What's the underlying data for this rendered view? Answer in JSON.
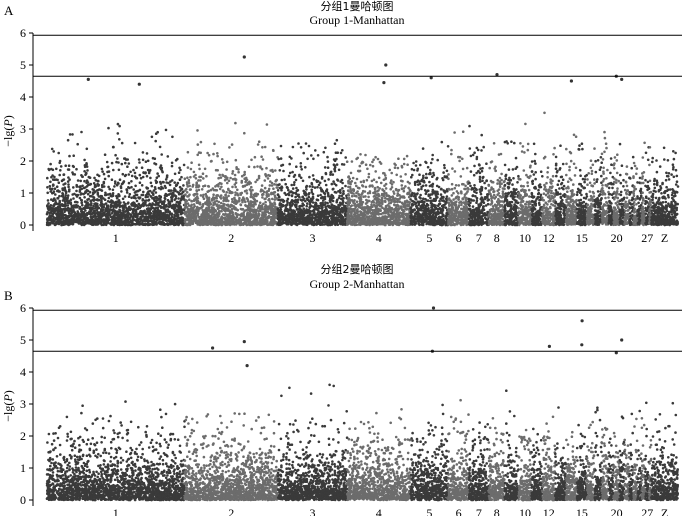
{
  "chart_data": [
    {
      "panel_label": "A",
      "type": "scatter",
      "subtype": "manhattan",
      "title": "分组1曼哈顿图",
      "subtitle": "Group 1-Manhattan",
      "ylabel_prefix": "−lg(",
      "ylabel_italic": "P",
      "ylabel_suffix": ")",
      "ylim": [
        0,
        6
      ],
      "yticks": [
        "0",
        "1",
        "2",
        "3",
        "4",
        "5",
        "6"
      ],
      "threshold_lines": [
        4.65,
        5.93
      ],
      "chromosome_labels": [
        "1",
        "2",
        "3",
        "4",
        "5",
        "6",
        "7",
        "8",
        "10",
        "12",
        "15",
        "20",
        "27",
        "Z"
      ],
      "chromosome_order": [
        "1",
        "2",
        "3",
        "4",
        "5",
        "6",
        "7",
        "8",
        "9",
        "10",
        "11",
        "12",
        "13",
        "14",
        "15",
        "16",
        "17",
        "18",
        "19",
        "20",
        "21",
        "22",
        "23",
        "24",
        "25",
        "26",
        "27",
        "28",
        "Z"
      ],
      "chromosome_colors": [
        "#3a3a3a",
        "#6c6c6c"
      ],
      "top_hits": [
        {
          "chr": "1",
          "value": 4.55
        },
        {
          "chr": "1",
          "value": 4.4
        },
        {
          "chr": "2",
          "value": 5.25
        },
        {
          "chr": "4",
          "value": 5.0
        },
        {
          "chr": "4",
          "value": 4.45
        },
        {
          "chr": "5",
          "value": 4.6
        },
        {
          "chr": "8",
          "value": 4.7
        },
        {
          "chr": "14",
          "value": 4.5
        },
        {
          "chr": "20",
          "value": 4.65
        },
        {
          "chr": "21",
          "value": 4.55
        }
      ]
    },
    {
      "panel_label": "B",
      "type": "scatter",
      "subtype": "manhattan",
      "title": "分组2曼哈顿图",
      "subtitle": "Group 2-Manhattan",
      "ylabel_prefix": "−lg(",
      "ylabel_italic": "P",
      "ylabel_suffix": ")",
      "ylim": [
        0,
        6
      ],
      "yticks": [
        "0",
        "1",
        "2",
        "3",
        "4",
        "5",
        "6"
      ],
      "threshold_lines": [
        4.65,
        5.93
      ],
      "chromosome_labels": [
        "1",
        "2",
        "3",
        "4",
        "5",
        "6",
        "7",
        "8",
        "10",
        "12",
        "15",
        "20",
        "27",
        "Z"
      ],
      "chromosome_order": [
        "1",
        "2",
        "3",
        "4",
        "5",
        "6",
        "7",
        "8",
        "9",
        "10",
        "11",
        "12",
        "13",
        "14",
        "15",
        "16",
        "17",
        "18",
        "19",
        "20",
        "21",
        "22",
        "23",
        "24",
        "25",
        "26",
        "27",
        "28",
        "Z"
      ],
      "chromosome_colors": [
        "#3a3a3a",
        "#6c6c6c"
      ],
      "top_hits": [
        {
          "chr": "2",
          "value": 4.75
        },
        {
          "chr": "2",
          "value": 4.2
        },
        {
          "chr": "2",
          "value": 4.95
        },
        {
          "chr": "5",
          "value": 6.0
        },
        {
          "chr": "5",
          "value": 4.65
        },
        {
          "chr": "12",
          "value": 4.8
        },
        {
          "chr": "15",
          "value": 5.6
        },
        {
          "chr": "15",
          "value": 4.85
        },
        {
          "chr": "20",
          "value": 4.6
        },
        {
          "chr": "21",
          "value": 5.0
        }
      ]
    }
  ]
}
